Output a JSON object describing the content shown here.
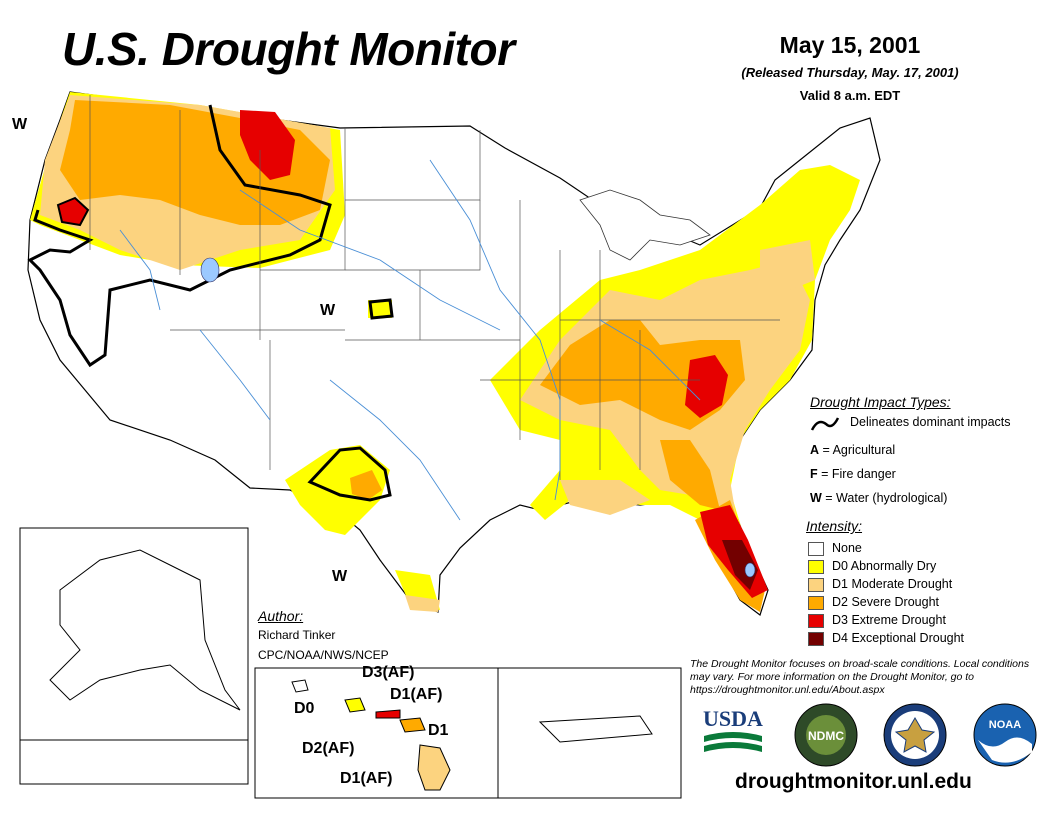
{
  "title": "U.S. Drought Monitor",
  "date": "May 15, 2001",
  "released": "(Released Thursday, May. 17, 2001)",
  "valid": "Valid 8 a.m. EDT",
  "map_labels": {
    "w_northwest": "W",
    "w_kansas": "W",
    "w_texas": "W",
    "hawaii_d0": "D0",
    "hawaii_d3af": "D3(AF)",
    "hawaii_d1af_top": "D1(AF)",
    "hawaii_d1": "D1",
    "hawaii_d2af": "D2(AF)",
    "hawaii_d1af_bottom": "D1(AF)"
  },
  "impact_legend": {
    "title": "Drought Impact Types:",
    "delineates": "Delineates dominant impacts",
    "a_key": "A",
    "a_text": " = Agricultural",
    "f_key": "F",
    "f_text": " = Fire danger",
    "w_key": "W",
    "w_text": " = Water (hydrological)"
  },
  "intensity": {
    "title": "Intensity:",
    "levels": [
      {
        "label": "None",
        "color": "#ffffff"
      },
      {
        "label": "D0 Abnormally Dry",
        "color": "#ffff00"
      },
      {
        "label": "D1 Moderate Drought",
        "color": "#fcd37f"
      },
      {
        "label": "D2 Severe Drought",
        "color": "#ffaa00"
      },
      {
        "label": "D3 Extreme Drought",
        "color": "#e60000"
      },
      {
        "label": "D4 Exceptional Drought",
        "color": "#730000"
      }
    ]
  },
  "author": {
    "title": "Author:",
    "name": "Richard Tinker",
    "org": "CPC/NOAA/NWS/NCEP"
  },
  "disclaimer": "The Drought Monitor focuses on broad-scale conditions. Local conditions may vary. For more information on the Drought Monitor, go to https://droughtmonitor.unl.edu/About.aspx",
  "logos": {
    "usda": "USDA",
    "ndmc": "NDMC",
    "noaa": "NOAA"
  },
  "url": "droughtmonitor.unl.edu"
}
